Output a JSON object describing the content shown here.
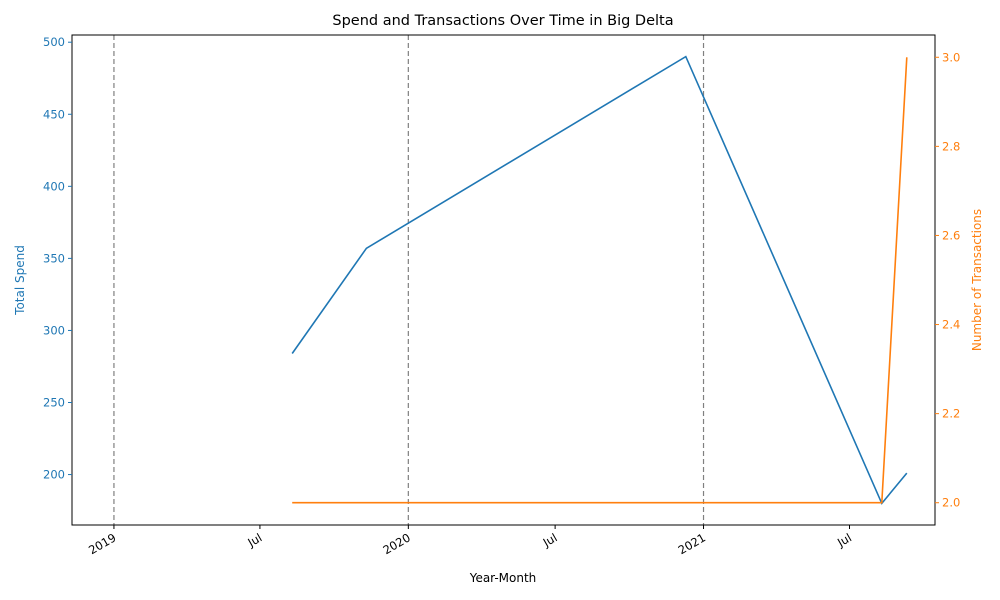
{
  "chart_data": {
    "type": "line",
    "title": "Spend and Transactions Over Time in Big Delta",
    "xlabel": "Year-Month",
    "ylabel_left": "Total Spend",
    "ylabel_right": "Number of Transactions",
    "x_ticks": [
      {
        "date": "2019-01-01",
        "label": "2019"
      },
      {
        "date": "2019-07-01",
        "label": "Jul"
      },
      {
        "date": "2020-01-01",
        "label": "2020"
      },
      {
        "date": "2020-07-01",
        "label": "Jul"
      },
      {
        "date": "2021-01-01",
        "label": "2021"
      },
      {
        "date": "2021-07-01",
        "label": "Jul"
      }
    ],
    "xlim": [
      "2018-11-10",
      "2021-10-15"
    ],
    "y_left_ticks": [
      200,
      250,
      300,
      350,
      400,
      450,
      500
    ],
    "y_left_lim": [
      165,
      505
    ],
    "y_right_ticks": [
      2.0,
      2.2,
      2.4,
      2.6,
      2.8,
      3.0
    ],
    "y_right_lim": [
      1.95,
      3.05
    ],
    "vlines": [
      "2019-01-01",
      "2020-01-01",
      "2021-01-01"
    ],
    "colors": {
      "spend": "#1f77b4",
      "transactions": "#ff7f0e",
      "vline": "#808080"
    },
    "series": [
      {
        "axis": "left",
        "points": [
          {
            "x": "2019-08-10",
            "y": 284
          },
          {
            "x": "2019-11-10",
            "y": 357
          },
          {
            "x": "2020-12-10",
            "y": 490
          },
          {
            "x": "2021-08-10",
            "y": 180
          },
          {
            "x": "2021-09-10",
            "y": 201
          }
        ]
      },
      {
        "axis": "right",
        "points": [
          {
            "x": "2019-08-10",
            "y": 2
          },
          {
            "x": "2019-11-10",
            "y": 2
          },
          {
            "x": "2020-12-10",
            "y": 2
          },
          {
            "x": "2021-08-10",
            "y": 2
          },
          {
            "x": "2021-09-10",
            "y": 3
          }
        ]
      }
    ]
  }
}
